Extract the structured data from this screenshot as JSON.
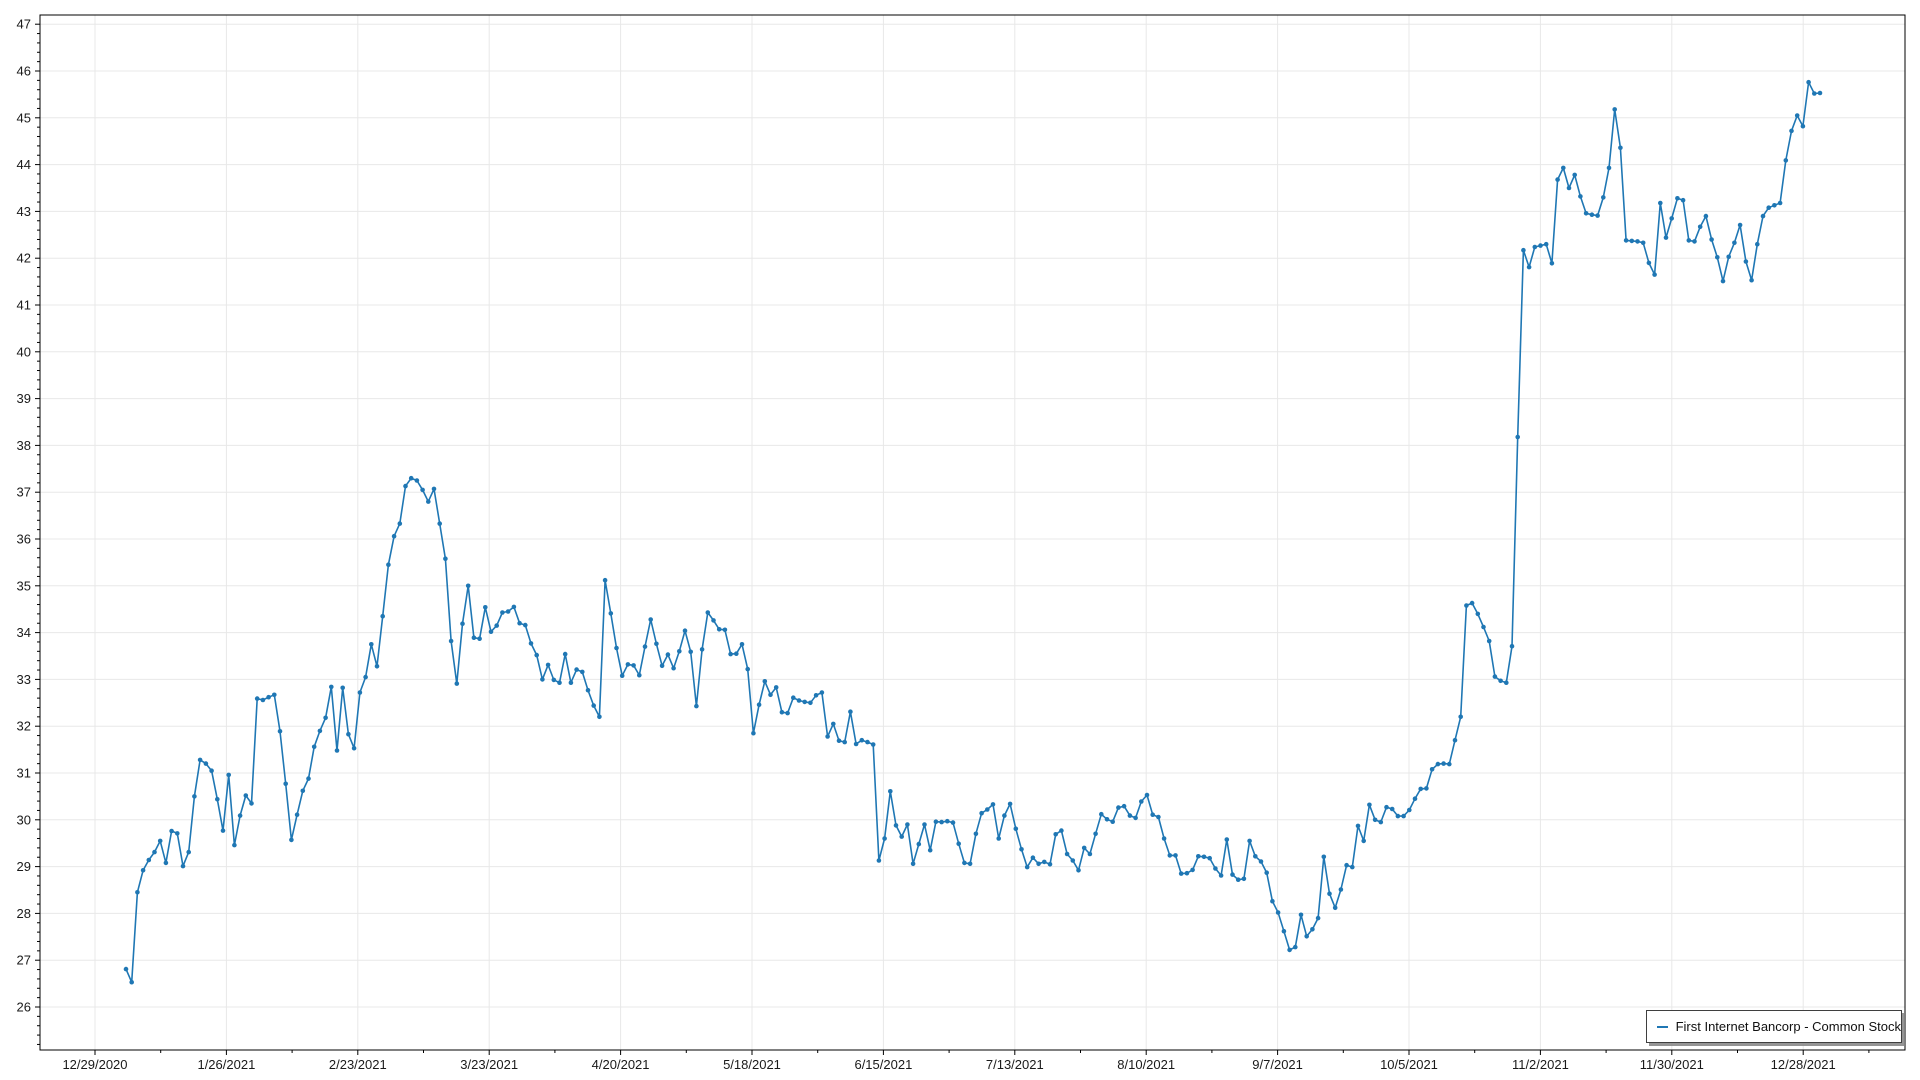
{
  "legend": {
    "label": "First Internet Bancorp - Common Stock"
  },
  "colors": {
    "line": "#1f77b4",
    "marker": "#1f77b4",
    "grid": "#e8e8e8",
    "axis": "#000000",
    "tick": "#000000",
    "text": "#1a1a1a",
    "legend_border": "#3f3f3f",
    "legend_shadow": "#828282",
    "background": "#ffffff"
  },
  "chart_data": {
    "type": "line",
    "title": "",
    "xlabel": "",
    "ylabel": "",
    "grid": true,
    "legend_position": "bottom-right",
    "marker": "circle",
    "ylim": [
      25.1,
      47.2
    ],
    "y_ticks": [
      26,
      27,
      28,
      29,
      30,
      31,
      32,
      33,
      34,
      35,
      36,
      37,
      38,
      39,
      40,
      41,
      42,
      43,
      44,
      45,
      46,
      47
    ],
    "y_minor_tick_interval": 0.2,
    "x_tick_labels": [
      "12/29/2020",
      "1/26/2021",
      "2/23/2021",
      "3/23/2021",
      "4/20/2021",
      "5/18/2021",
      "6/15/2021",
      "7/13/2021",
      "8/10/2021",
      "9/7/2021",
      "10/5/2021",
      "11/2/2021",
      "11/30/2021",
      "12/28/2021"
    ],
    "series": [
      {
        "name": "First Internet Bancorp - Common Stock",
        "color": "#1f77b4",
        "values": [
          26.81,
          26.53,
          28.45,
          28.92,
          29.14,
          29.31,
          29.55,
          29.08,
          29.76,
          29.71,
          29.01,
          29.31,
          30.5,
          31.28,
          31.2,
          31.05,
          30.44,
          29.77,
          30.96,
          29.46,
          30.09,
          30.52,
          30.35,
          32.59,
          32.56,
          32.62,
          32.67,
          31.89,
          30.77,
          29.57,
          30.11,
          30.62,
          30.88,
          31.56,
          31.9,
          32.18,
          32.84,
          31.48,
          32.82,
          31.83,
          31.53,
          32.72,
          33.05,
          33.75,
          33.28,
          34.35,
          35.45,
          36.06,
          36.33,
          37.13,
          37.3,
          37.25,
          37.05,
          36.8,
          37.07,
          36.33,
          35.58,
          33.82,
          32.91,
          34.19,
          35.0,
          33.89,
          33.87,
          34.54,
          34.02,
          34.15,
          34.43,
          34.45,
          34.55,
          34.2,
          34.16,
          33.77,
          33.52,
          33.0,
          33.31,
          32.99,
          32.93,
          33.54,
          32.93,
          33.21,
          33.16,
          32.77,
          32.44,
          32.2,
          35.12,
          34.41,
          33.67,
          33.08,
          33.32,
          33.3,
          33.09,
          33.7,
          34.28,
          33.76,
          33.29,
          33.53,
          33.24,
          33.6,
          34.04,
          33.59,
          32.43,
          33.64,
          34.43,
          34.26,
          34.07,
          34.06,
          33.54,
          33.55,
          33.75,
          33.22,
          31.85,
          32.46,
          32.96,
          32.67,
          32.83,
          32.3,
          32.28,
          32.61,
          32.55,
          32.52,
          32.5,
          32.66,
          32.72,
          31.78,
          32.05,
          31.69,
          31.66,
          32.31,
          31.62,
          31.7,
          31.66,
          31.61,
          29.13,
          29.6,
          30.61,
          29.88,
          29.64,
          29.9,
          29.06,
          29.48,
          29.9,
          29.35,
          29.96,
          29.95,
          29.97,
          29.94,
          29.49,
          29.08,
          29.06,
          29.7,
          30.14,
          30.22,
          30.33,
          29.6,
          30.09,
          30.34,
          29.81,
          29.37,
          28.99,
          29.19,
          29.06,
          29.1,
          29.05,
          29.69,
          29.77,
          29.27,
          29.13,
          28.92,
          29.4,
          29.27,
          29.7,
          30.12,
          30.01,
          29.96,
          30.26,
          30.29,
          30.09,
          30.04,
          30.39,
          30.53,
          30.11,
          30.06,
          29.6,
          29.24,
          29.24,
          28.85,
          28.86,
          28.93,
          29.22,
          29.21,
          29.18,
          28.96,
          28.81,
          29.58,
          28.83,
          28.72,
          28.74,
          29.55,
          29.22,
          29.11,
          28.87,
          28.26,
          28.02,
          27.62,
          27.22,
          27.28,
          27.97,
          27.51,
          27.66,
          27.9,
          29.21,
          28.42,
          28.12,
          28.51,
          29.03,
          28.99,
          29.87,
          29.55,
          30.32,
          30.0,
          29.95,
          30.27,
          30.23,
          30.08,
          30.08,
          30.21,
          30.45,
          30.66,
          30.67,
          31.08,
          31.19,
          31.2,
          31.19,
          31.7,
          32.2,
          34.58,
          34.63,
          34.4,
          34.12,
          33.82,
          33.06,
          32.97,
          32.93,
          33.71,
          38.18,
          42.17,
          41.81,
          42.24,
          42.27,
          42.3,
          41.89,
          43.68,
          43.93,
          43.5,
          43.78,
          43.32,
          42.96,
          42.93,
          42.91,
          43.3,
          43.93,
          45.18,
          44.36,
          42.38,
          42.37,
          42.36,
          42.33,
          41.9,
          41.65,
          43.18,
          42.44,
          42.85,
          43.28,
          43.24,
          42.38,
          42.36,
          42.67,
          42.9,
          42.4,
          42.02,
          41.51,
          42.03,
          42.33,
          42.71,
          41.93,
          41.53,
          42.3,
          42.9,
          43.08,
          43.13,
          43.18,
          44.09,
          44.72,
          45.05,
          44.82,
          45.76,
          45.52,
          45.53
        ]
      }
    ]
  }
}
